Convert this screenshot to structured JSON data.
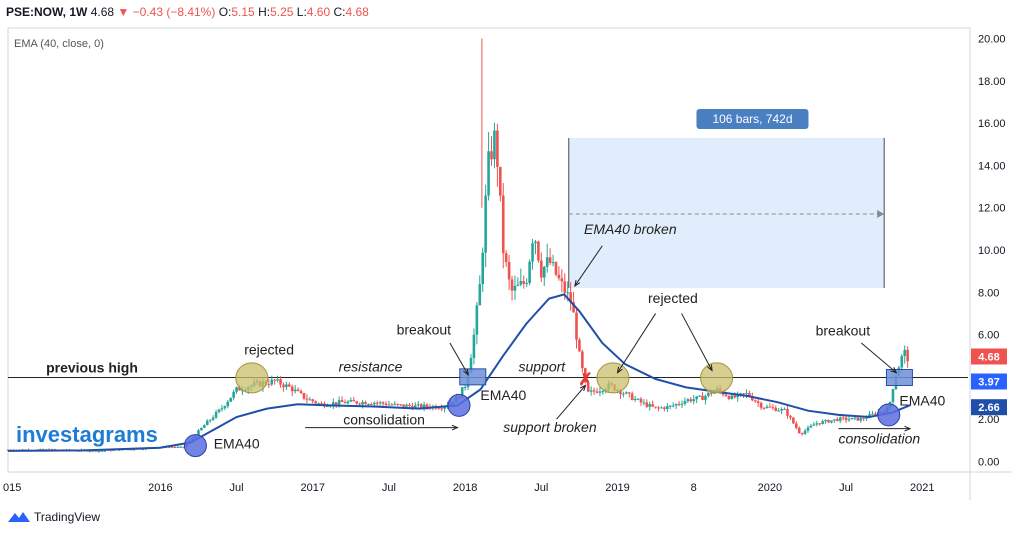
{
  "header": {
    "symbol": "PSE:NOW, 1W",
    "price": "4.68",
    "change": "−0.43 (−8.41%)",
    "o_label": "O:",
    "o": "5.15",
    "h_label": "H:",
    "h": "5.25",
    "l_label": "L:",
    "l": "4.60",
    "c_label": "C:",
    "c": "4.68"
  },
  "indicator_label": "EMA (40, close, 0)",
  "watermark": "investagrams",
  "footer": {
    "brand": "TradingView"
  },
  "colors": {
    "up": "#26a69a",
    "down": "#ef5350",
    "ema": "#1f4fa8",
    "range_fill": "#dbeafb",
    "price_tag": "#ef5350",
    "ema_tag": "#1f4fa8",
    "level_tag": "#2962ff"
  },
  "chart_data": {
    "type": "candlestick",
    "timeframe": "1W",
    "ylim": [
      -0.5,
      20.5
    ],
    "y_ticks": [
      "0.00",
      "2.00",
      "4.00",
      "6.00",
      "8.00",
      "10.00",
      "12.00",
      "14.00",
      "16.00",
      "18.00",
      "20.00"
    ],
    "x_ticks": [
      "2016",
      "Jul",
      "2017",
      "Jul",
      "2018",
      "Jul",
      "2019",
      "8",
      "2020",
      "Jul",
      "2021"
    ],
    "x_left_label": "015",
    "x_range": [
      2015.0,
      2021.3
    ],
    "price_tags": [
      {
        "value": 4.68,
        "label": "4.68",
        "kind": "price"
      },
      {
        "value": 3.97,
        "label": "3.97",
        "kind": "level"
      },
      {
        "value": 2.66,
        "label": "2.66",
        "kind": "ema"
      }
    ],
    "previous_high_level": 3.97,
    "ohlc_path": [
      [
        2015.0,
        0.55
      ],
      [
        2015.3,
        0.55
      ],
      [
        2015.6,
        0.5
      ],
      [
        2015.85,
        0.6
      ],
      [
        2016.05,
        0.7
      ],
      [
        2016.15,
        0.65
      ],
      [
        2016.3,
        1.8
      ],
      [
        2016.4,
        2.5
      ],
      [
        2016.5,
        3.4
      ],
      [
        2016.6,
        3.6
      ],
      [
        2016.75,
        3.8
      ],
      [
        2016.85,
        3.5
      ],
      [
        2016.95,
        3.0
      ],
      [
        2017.05,
        2.7
      ],
      [
        2017.2,
        2.8
      ],
      [
        2017.4,
        2.8
      ],
      [
        2017.55,
        2.65
      ],
      [
        2017.7,
        2.6
      ],
      [
        2017.85,
        2.6
      ],
      [
        2017.95,
        3.0
      ],
      [
        2018.0,
        3.6
      ],
      [
        2018.05,
        5.5
      ],
      [
        2018.1,
        8.5
      ],
      [
        2018.15,
        14.0
      ],
      [
        2018.2,
        15.5
      ],
      [
        2018.25,
        10.0
      ],
      [
        2018.3,
        8.0
      ],
      [
        2018.4,
        8.5
      ],
      [
        2018.45,
        11.0
      ],
      [
        2018.5,
        9.0
      ],
      [
        2018.55,
        9.5
      ],
      [
        2018.62,
        8.5
      ],
      [
        2018.7,
        7.5
      ],
      [
        2018.75,
        5.0
      ],
      [
        2018.8,
        3.2
      ],
      [
        2018.88,
        3.4
      ],
      [
        2018.95,
        3.6
      ],
      [
        2019.05,
        3.2
      ],
      [
        2019.15,
        2.8
      ],
      [
        2019.25,
        2.5
      ],
      [
        2019.35,
        2.6
      ],
      [
        2019.45,
        2.9
      ],
      [
        2019.55,
        3.0
      ],
      [
        2019.65,
        3.4
      ],
      [
        2019.75,
        3.0
      ],
      [
        2019.85,
        3.2
      ],
      [
        2019.95,
        2.6
      ],
      [
        2020.1,
        2.4
      ],
      [
        2020.2,
        1.3
      ],
      [
        2020.3,
        1.8
      ],
      [
        2020.45,
        2.0
      ],
      [
        2020.6,
        2.0
      ],
      [
        2020.7,
        2.3
      ],
      [
        2020.78,
        2.5
      ],
      [
        2020.82,
        4.0
      ],
      [
        2020.88,
        5.2
      ],
      [
        2020.92,
        4.7
      ]
    ],
    "ema40": [
      [
        2015.0,
        0.5
      ],
      [
        2015.5,
        0.52
      ],
      [
        2016.0,
        0.65
      ],
      [
        2016.2,
        0.9
      ],
      [
        2016.35,
        1.5
      ],
      [
        2016.5,
        2.1
      ],
      [
        2016.7,
        2.5
      ],
      [
        2016.9,
        2.7
      ],
      [
        2017.1,
        2.65
      ],
      [
        2017.4,
        2.6
      ],
      [
        2017.7,
        2.5
      ],
      [
        2017.95,
        2.65
      ],
      [
        2018.1,
        3.4
      ],
      [
        2018.25,
        5.0
      ],
      [
        2018.4,
        6.5
      ],
      [
        2018.55,
        7.7
      ],
      [
        2018.65,
        7.9
      ],
      [
        2018.75,
        7.1
      ],
      [
        2018.9,
        5.6
      ],
      [
        2019.05,
        4.6
      ],
      [
        2019.25,
        3.9
      ],
      [
        2019.45,
        3.5
      ],
      [
        2019.65,
        3.3
      ],
      [
        2019.85,
        3.1
      ],
      [
        2020.05,
        2.8
      ],
      [
        2020.25,
        2.4
      ],
      [
        2020.45,
        2.2
      ],
      [
        2020.65,
        2.1
      ],
      [
        2020.8,
        2.3
      ],
      [
        2020.92,
        2.66
      ]
    ],
    "measure_box": {
      "x0": 2018.68,
      "x1": 2020.75,
      "y_top": 15.3,
      "y_bottom": 8.2,
      "arrow_y": 11.7,
      "label": "106 bars, 742d"
    },
    "annotations": [
      {
        "text": "previous high",
        "x": 2015.25,
        "y": 4.2,
        "style": "bold"
      },
      {
        "text": "rejected",
        "x": 2016.55,
        "y": 5.05
      },
      {
        "text": "resistance",
        "x": 2017.17,
        "y": 4.25,
        "style": "italic"
      },
      {
        "text": "breakout",
        "x": 2017.55,
        "y": 6.0
      },
      {
        "text": "consolidation",
        "x": 2017.2,
        "y": 1.75
      },
      {
        "text": "EMA40",
        "x": 2016.35,
        "y": 0.6
      },
      {
        "text": "EMA40",
        "x": 2018.1,
        "y": 2.9
      },
      {
        "text": "support",
        "x": 2018.35,
        "y": 4.25,
        "style": "italic"
      },
      {
        "text": "support broken",
        "x": 2018.25,
        "y": 1.4,
        "style": "italic"
      },
      {
        "text": "EMA40 broken",
        "x": 2018.78,
        "y": 10.75,
        "style": "italic"
      },
      {
        "text": "rejected",
        "x": 2019.2,
        "y": 7.5
      },
      {
        "text": "breakout",
        "x": 2020.3,
        "y": 5.95
      },
      {
        "text": "EMA40",
        "x": 2020.85,
        "y": 2.65
      },
      {
        "text": "consolidation",
        "x": 2020.45,
        "y": 0.85,
        "style": "italic"
      }
    ],
    "markers": [
      {
        "kind": "circle-blue",
        "x": 2016.23,
        "y": 0.75
      },
      {
        "kind": "circle-blue",
        "x": 2017.96,
        "y": 2.65
      },
      {
        "kind": "circle-blue",
        "x": 2020.78,
        "y": 2.2
      },
      {
        "kind": "circle-olive",
        "x": 2016.6,
        "y": 3.95
      },
      {
        "kind": "circle-olive",
        "x": 2018.97,
        "y": 3.95
      },
      {
        "kind": "circle-olive",
        "x": 2019.65,
        "y": 3.95
      },
      {
        "kind": "square-blue",
        "x": 2018.05,
        "y": 4.0
      },
      {
        "kind": "square-blue",
        "x": 2020.85,
        "y": 3.97
      },
      {
        "kind": "x-red",
        "x": 2018.79,
        "y": 3.9
      }
    ]
  }
}
